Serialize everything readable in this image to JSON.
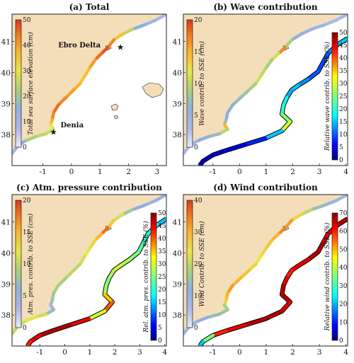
{
  "chart_data": [
    {
      "type": "map",
      "title": "(a) Total",
      "xticks": [
        "-1",
        "0",
        "1",
        "2",
        "3"
      ],
      "yticks": [
        "41",
        "40",
        "39",
        "38"
      ],
      "colorbars": [
        {
          "label": "Total sea surface elevation (cm)",
          "ticks": [
            "50",
            "40",
            "30",
            "20",
            "10",
            "0"
          ],
          "range": [
            0,
            50
          ],
          "scale": "light-blue-green-yellow-orange-red"
        }
      ],
      "places": [
        {
          "name": "Ebro Delta"
        },
        {
          "name": "Denia"
        }
      ]
    },
    {
      "type": "map",
      "title": "(b) Wave contribution",
      "xticks": [
        "-1",
        "0",
        "1",
        "2",
        "3",
        "4"
      ],
      "yticks": [
        "41",
        "40",
        "39",
        "38"
      ],
      "colorbars": [
        {
          "label": "Wave contrib. to SSE (cm)",
          "ticks": [
            "20",
            "15",
            "10",
            "5",
            "0"
          ],
          "range": [
            0,
            20
          ],
          "scale": "light-blue-green-yellow-orange-red"
        },
        {
          "label": "Relative wave contrib. to SSE (%)",
          "ticks": [
            "50",
            "45",
            "40",
            "35",
            "30",
            "25",
            "20",
            "15",
            "10",
            "5",
            "0"
          ],
          "range": [
            0,
            50
          ],
          "scale": "jet"
        }
      ]
    },
    {
      "type": "map",
      "title": "(c) Atm. pressure contribution",
      "xticks": [
        "-1",
        "0",
        "1",
        "2",
        "3",
        "4"
      ],
      "yticks": [
        "41",
        "40",
        "39",
        "38"
      ],
      "colorbars": [
        {
          "label": "Atm. pres. contrib. to SSE (cm)",
          "ticks": [
            "20",
            "15",
            "10",
            "5",
            "0"
          ],
          "range": [
            0,
            20
          ],
          "scale": "light-blue-green-yellow-orange-red"
        },
        {
          "label": "Rel. atm. pres. contrib. to SSE (%)",
          "ticks": [
            "50",
            "45",
            "40",
            "35",
            "30",
            "25",
            "20",
            "15",
            "10",
            "5",
            "0"
          ],
          "range": [
            0,
            50
          ],
          "scale": "jet"
        }
      ]
    },
    {
      "type": "map",
      "title": "(d) Wind contribution",
      "xticks": [
        "-1",
        "0",
        "1",
        "2",
        "3",
        "4"
      ],
      "yticks": [
        "41",
        "40",
        "39",
        "38"
      ],
      "colorbars": [
        {
          "label": "Wind Contrib. to SSE (cm)",
          "ticks": [
            "40",
            "30",
            "20",
            "10",
            "0"
          ],
          "range": [
            0,
            40
          ],
          "scale": "light-blue-green-yellow-orange-red"
        },
        {
          "label": "Relative wind contrib. to SSE (%)",
          "ticks": [
            "70",
            "60",
            "50",
            "40",
            "30",
            "20",
            "10",
            "0"
          ],
          "range": [
            0,
            70
          ],
          "scale": "jet"
        }
      ]
    }
  ],
  "colors": {
    "land": "#f4deb9",
    "sea": "#ffffff",
    "frame": "#222222"
  }
}
